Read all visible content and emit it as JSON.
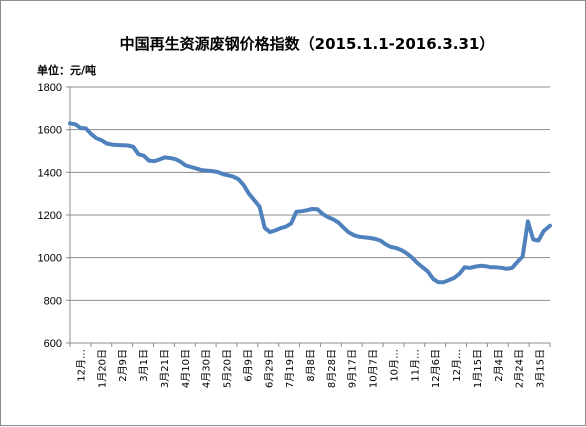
{
  "chart_data": {
    "type": "line",
    "title": "中国再生资源废钢价格指数（2015.1.1-2016.3.31）",
    "unit_label": "单位：元/吨",
    "ylim": [
      600,
      1800
    ],
    "yticks": [
      600,
      800,
      1000,
      1200,
      1400,
      1600,
      1800
    ],
    "grid": true,
    "legend": "none",
    "line_color": "#4f81bd",
    "x_tick_labels": [
      "12月…",
      "1月20日",
      "2月9日",
      "3月1日",
      "3月21日",
      "4月10日",
      "4月30日",
      "5月20日",
      "6月9日",
      "6月29日",
      "7月19日",
      "8月8日",
      "8月28日",
      "9月17日",
      "10月7日",
      "10月…",
      "11月…",
      "12月6日",
      "12月…",
      "1月15日",
      "2月4日",
      "2月24日",
      "3月15日"
    ],
    "x": [
      "2014-12-31",
      "2015-01-05",
      "2015-01-10",
      "2015-01-15",
      "2015-01-20",
      "2015-01-25",
      "2015-01-30",
      "2015-02-04",
      "2015-02-09",
      "2015-02-14",
      "2015-02-19",
      "2015-02-24",
      "2015-03-01",
      "2015-03-06",
      "2015-03-11",
      "2015-03-16",
      "2015-03-21",
      "2015-03-26",
      "2015-03-31",
      "2015-04-05",
      "2015-04-10",
      "2015-04-15",
      "2015-04-20",
      "2015-04-25",
      "2015-04-30",
      "2015-05-05",
      "2015-05-10",
      "2015-05-15",
      "2015-05-20",
      "2015-05-25",
      "2015-05-30",
      "2015-06-04",
      "2015-06-09",
      "2015-06-14",
      "2015-06-19",
      "2015-06-24",
      "2015-06-29",
      "2015-07-04",
      "2015-07-09",
      "2015-07-14",
      "2015-07-19",
      "2015-07-24",
      "2015-07-29",
      "2015-08-03",
      "2015-08-08",
      "2015-08-13",
      "2015-08-18",
      "2015-08-23",
      "2015-08-28",
      "2015-09-02",
      "2015-09-07",
      "2015-09-12",
      "2015-09-17",
      "2015-09-22",
      "2015-09-27",
      "2015-10-02",
      "2015-10-07",
      "2015-10-12",
      "2015-10-17",
      "2015-10-22",
      "2015-10-27",
      "2015-11-01",
      "2015-11-06",
      "2015-11-11",
      "2015-11-16",
      "2015-11-21",
      "2015-11-26",
      "2015-12-01",
      "2015-12-06",
      "2015-12-11",
      "2015-12-16",
      "2015-12-21",
      "2015-12-26",
      "2015-12-31",
      "2016-01-05",
      "2016-01-10",
      "2016-01-15",
      "2016-01-20",
      "2016-01-25",
      "2016-01-30",
      "2016-02-04",
      "2016-02-09",
      "2016-02-14",
      "2016-02-19",
      "2016-02-24",
      "2016-02-29",
      "2016-03-05",
      "2016-03-10",
      "2016-03-15",
      "2016-03-20",
      "2016-03-25",
      "2016-03-31"
    ],
    "series": [
      {
        "values": [
          1630,
          1625,
          1608,
          1606,
          1580,
          1560,
          1550,
          1535,
          1530,
          1528,
          1527,
          1526,
          1520,
          1485,
          1478,
          1455,
          1452,
          1460,
          1470,
          1467,
          1462,
          1450,
          1432,
          1425,
          1418,
          1410,
          1408,
          1406,
          1402,
          1392,
          1386,
          1380,
          1368,
          1340,
          1300,
          1270,
          1240,
          1140,
          1120,
          1128,
          1138,
          1145,
          1160,
          1215,
          1218,
          1222,
          1228,
          1227,
          1205,
          1190,
          1180,
          1165,
          1140,
          1118,
          1105,
          1098,
          1095,
          1092,
          1088,
          1080,
          1062,
          1050,
          1045,
          1035,
          1020,
          1000,
          975,
          955,
          935,
          900,
          885,
          885,
          895,
          905,
          925,
          955,
          952,
          958,
          962,
          960,
          955,
          955,
          952,
          948,
          952,
          980,
          1005,
          1170,
          1085,
          1080,
          1125,
          1150
        ]
      }
    ]
  }
}
